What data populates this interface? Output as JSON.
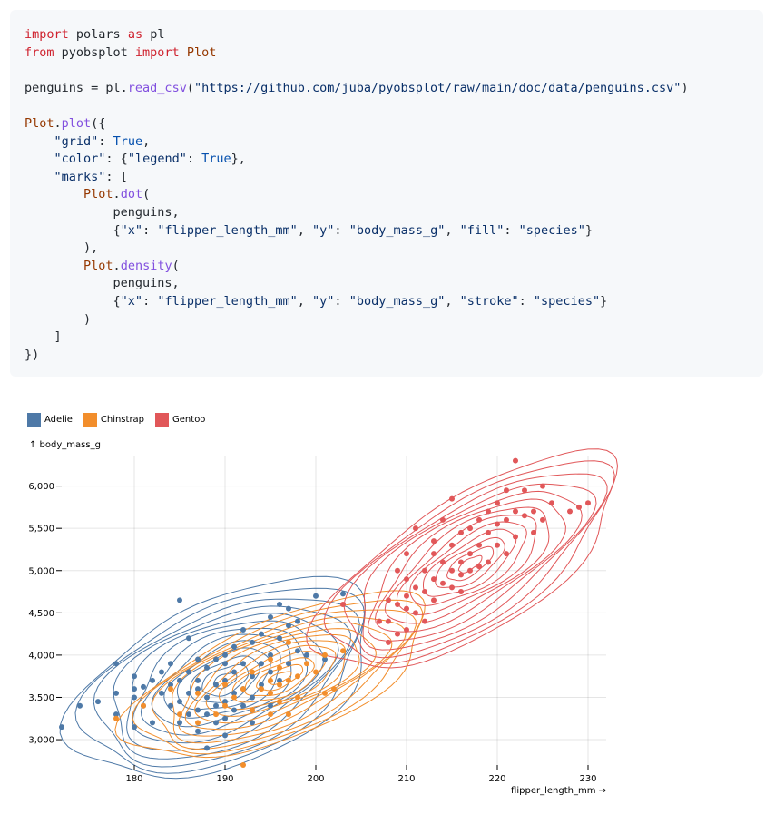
{
  "code": {
    "lines": [
      [
        {
          "t": "import",
          "c": "kw"
        },
        {
          "t": " polars "
        },
        {
          "t": "as",
          "c": "kw"
        },
        {
          "t": " pl"
        }
      ],
      [
        {
          "t": "from",
          "c": "kw"
        },
        {
          "t": " pyobsplot "
        },
        {
          "t": "import",
          "c": "kw"
        },
        {
          "t": " "
        },
        {
          "t": "Plot",
          "c": "cls"
        }
      ],
      [],
      [
        {
          "t": "penguins = pl."
        },
        {
          "t": "read_csv",
          "c": "fn"
        },
        {
          "t": "("
        },
        {
          "t": "\"https://github.com/juba/pyobsplot/raw/main/doc/data/penguins.csv\"",
          "c": "str"
        },
        {
          "t": ")"
        }
      ],
      [],
      [
        {
          "t": "Plot",
          "c": "cls"
        },
        {
          "t": "."
        },
        {
          "t": "plot",
          "c": "fn"
        },
        {
          "t": "({"
        }
      ],
      [
        {
          "t": "    "
        },
        {
          "t": "\"grid\"",
          "c": "str"
        },
        {
          "t": ": "
        },
        {
          "t": "True",
          "c": "cst"
        },
        {
          "t": ","
        }
      ],
      [
        {
          "t": "    "
        },
        {
          "t": "\"color\"",
          "c": "str"
        },
        {
          "t": ": {"
        },
        {
          "t": "\"legend\"",
          "c": "str"
        },
        {
          "t": ": "
        },
        {
          "t": "True",
          "c": "cst"
        },
        {
          "t": "},"
        }
      ],
      [
        {
          "t": "    "
        },
        {
          "t": "\"marks\"",
          "c": "str"
        },
        {
          "t": ": ["
        }
      ],
      [
        {
          "t": "        "
        },
        {
          "t": "Plot",
          "c": "cls"
        },
        {
          "t": "."
        },
        {
          "t": "dot",
          "c": "fn"
        },
        {
          "t": "("
        }
      ],
      [
        {
          "t": "            penguins,"
        }
      ],
      [
        {
          "t": "            {"
        },
        {
          "t": "\"x\"",
          "c": "str"
        },
        {
          "t": ": "
        },
        {
          "t": "\"flipper_length_mm\"",
          "c": "str"
        },
        {
          "t": ", "
        },
        {
          "t": "\"y\"",
          "c": "str"
        },
        {
          "t": ": "
        },
        {
          "t": "\"body_mass_g\"",
          "c": "str"
        },
        {
          "t": ", "
        },
        {
          "t": "\"fill\"",
          "c": "str"
        },
        {
          "t": ": "
        },
        {
          "t": "\"species\"",
          "c": "str"
        },
        {
          "t": "}"
        }
      ],
      [
        {
          "t": "        ),"
        }
      ],
      [
        {
          "t": "        "
        },
        {
          "t": "Plot",
          "c": "cls"
        },
        {
          "t": "."
        },
        {
          "t": "density",
          "c": "fn"
        },
        {
          "t": "("
        }
      ],
      [
        {
          "t": "            penguins,"
        }
      ],
      [
        {
          "t": "            {"
        },
        {
          "t": "\"x\"",
          "c": "str"
        },
        {
          "t": ": "
        },
        {
          "t": "\"flipper_length_mm\"",
          "c": "str"
        },
        {
          "t": ", "
        },
        {
          "t": "\"y\"",
          "c": "str"
        },
        {
          "t": ": "
        },
        {
          "t": "\"body_mass_g\"",
          "c": "str"
        },
        {
          "t": ", "
        },
        {
          "t": "\"stroke\"",
          "c": "str"
        },
        {
          "t": ": "
        },
        {
          "t": "\"species\"",
          "c": "str"
        },
        {
          "t": "}"
        }
      ],
      [
        {
          "t": "        )"
        }
      ],
      [
        {
          "t": "    ]"
        }
      ],
      [
        {
          "t": "})"
        }
      ]
    ]
  },
  "chart_data": {
    "type": "scatter",
    "title": "",
    "xlabel": "flipper_length_mm →",
    "ylabel": "↑ body_mass_g",
    "xlim": [
      172,
      232
    ],
    "ylim": [
      2700,
      6350
    ],
    "xticks": [
      180,
      190,
      200,
      210,
      220,
      230
    ],
    "yticks": [
      3000,
      3500,
      4000,
      4500,
      5000,
      5500,
      6000
    ],
    "xtick_labels": [
      "180",
      "190",
      "200",
      "210",
      "220",
      "230"
    ],
    "ytick_labels": [
      "3,000",
      "3,500",
      "4,000",
      "4,500",
      "5,000",
      "5,500",
      "6,000"
    ],
    "grid": true,
    "legend": "top-left",
    "series": [
      {
        "name": "Adelie",
        "color": "#4e79a7",
        "center": [
          190,
          3700
        ],
        "spread": [
          6.5,
          460
        ],
        "corr": 0.47,
        "points": [
          [
            172,
            3150
          ],
          [
            174,
            3400
          ],
          [
            176,
            3450
          ],
          [
            178,
            3900
          ],
          [
            178,
            3300
          ],
          [
            178,
            3550
          ],
          [
            180,
            3600
          ],
          [
            180,
            3750
          ],
          [
            180,
            3500
          ],
          [
            180,
            3150
          ],
          [
            181,
            3625
          ],
          [
            181,
            3400
          ],
          [
            182,
            3200
          ],
          [
            182,
            3700
          ],
          [
            183,
            3550
          ],
          [
            183,
            3800
          ],
          [
            184,
            3400
          ],
          [
            184,
            3900
          ],
          [
            184,
            3650
          ],
          [
            185,
            3700
          ],
          [
            185,
            3450
          ],
          [
            185,
            3200
          ],
          [
            185,
            4650
          ],
          [
            186,
            3800
          ],
          [
            186,
            3550
          ],
          [
            186,
            3300
          ],
          [
            186,
            4200
          ],
          [
            187,
            3600
          ],
          [
            187,
            3350
          ],
          [
            187,
            3700
          ],
          [
            187,
            3950
          ],
          [
            187,
            3100
          ],
          [
            188,
            3500
          ],
          [
            188,
            3300
          ],
          [
            188,
            3850
          ],
          [
            188,
            2900
          ],
          [
            189,
            3650
          ],
          [
            189,
            3400
          ],
          [
            189,
            3950
          ],
          [
            189,
            3200
          ],
          [
            190,
            3700
          ],
          [
            190,
            3450
          ],
          [
            190,
            4000
          ],
          [
            190,
            3900
          ],
          [
            190,
            3250
          ],
          [
            190,
            3050
          ],
          [
            191,
            3800
          ],
          [
            191,
            3550
          ],
          [
            191,
            4100
          ],
          [
            191,
            3350
          ],
          [
            192,
            3600
          ],
          [
            192,
            3900
          ],
          [
            192,
            3400
          ],
          [
            192,
            4300
          ],
          [
            193,
            3500
          ],
          [
            193,
            3750
          ],
          [
            193,
            4150
          ],
          [
            193,
            3200
          ],
          [
            194,
            3650
          ],
          [
            194,
            3900
          ],
          [
            194,
            4250
          ],
          [
            195,
            3800
          ],
          [
            195,
            3400
          ],
          [
            195,
            4000
          ],
          [
            195,
            4450
          ],
          [
            196,
            4200
          ],
          [
            196,
            3700
          ],
          [
            196,
            4600
          ],
          [
            197,
            4550
          ],
          [
            197,
            3900
          ],
          [
            197,
            4350
          ],
          [
            198,
            4400
          ],
          [
            198,
            4050
          ],
          [
            199,
            4000
          ],
          [
            200,
            4700
          ],
          [
            201,
            3950
          ],
          [
            203,
            4725
          ]
        ]
      },
      {
        "name": "Chinstrap",
        "color": "#f28e2c",
        "center": [
          196,
          3730
        ],
        "spread": [
          6.5,
          380
        ],
        "corr": 0.64,
        "points": [
          [
            178,
            3250
          ],
          [
            181,
            3400
          ],
          [
            184,
            3600
          ],
          [
            185,
            3300
          ],
          [
            187,
            3550
          ],
          [
            187,
            3200
          ],
          [
            189,
            3300
          ],
          [
            190,
            3650
          ],
          [
            190,
            3400
          ],
          [
            191,
            3500
          ],
          [
            192,
            2700
          ],
          [
            192,
            3600
          ],
          [
            193,
            3350
          ],
          [
            193,
            3800
          ],
          [
            194,
            3600
          ],
          [
            195,
            3550
          ],
          [
            195,
            3300
          ],
          [
            195,
            3700
          ],
          [
            195,
            3950
          ],
          [
            196,
            3450
          ],
          [
            196,
            3650
          ],
          [
            196,
            3850
          ],
          [
            197,
            3700
          ],
          [
            197,
            3300
          ],
          [
            197,
            4150
          ],
          [
            198,
            3750
          ],
          [
            198,
            3500
          ],
          [
            199,
            3900
          ],
          [
            200,
            3800
          ],
          [
            201,
            4000
          ],
          [
            201,
            3550
          ],
          [
            202,
            3600
          ],
          [
            203,
            4050
          ]
        ]
      },
      {
        "name": "Gentoo",
        "color": "#e15759",
        "center": [
          217,
          5076
        ],
        "spread": [
          6.5,
          500
        ],
        "corr": 0.7,
        "points": [
          [
            203,
            4600
          ],
          [
            207,
            4400
          ],
          [
            208,
            4150
          ],
          [
            208,
            4650
          ],
          [
            208,
            4400
          ],
          [
            209,
            5000
          ],
          [
            209,
            4250
          ],
          [
            209,
            4600
          ],
          [
            210,
            4700
          ],
          [
            210,
            4550
          ],
          [
            210,
            4900
          ],
          [
            210,
            4300
          ],
          [
            210,
            5200
          ],
          [
            211,
            5500
          ],
          [
            211,
            4800
          ],
          [
            211,
            4500
          ],
          [
            212,
            5000
          ],
          [
            212,
            4750
          ],
          [
            212,
            4400
          ],
          [
            213,
            5200
          ],
          [
            213,
            4900
          ],
          [
            213,
            4650
          ],
          [
            213,
            5350
          ],
          [
            214,
            5100
          ],
          [
            214,
            4850
          ],
          [
            214,
            5600
          ],
          [
            215,
            5300
          ],
          [
            215,
            5000
          ],
          [
            215,
            4800
          ],
          [
            215,
            5850
          ],
          [
            216,
            5100
          ],
          [
            216,
            4950
          ],
          [
            216,
            5450
          ],
          [
            216,
            4750
          ],
          [
            217,
            5500
          ],
          [
            217,
            5200
          ],
          [
            217,
            5000
          ],
          [
            218,
            5300
          ],
          [
            218,
            5600
          ],
          [
            218,
            5050
          ],
          [
            219,
            5700
          ],
          [
            219,
            5450
          ],
          [
            219,
            5100
          ],
          [
            220,
            5800
          ],
          [
            220,
            5550
          ],
          [
            220,
            5300
          ],
          [
            221,
            5600
          ],
          [
            221,
            5950
          ],
          [
            221,
            5200
          ],
          [
            222,
            5700
          ],
          [
            222,
            5400
          ],
          [
            222,
            6300
          ],
          [
            223,
            5650
          ],
          [
            223,
            5950
          ],
          [
            224,
            5700
          ],
          [
            224,
            5450
          ],
          [
            225,
            6000
          ],
          [
            225,
            5600
          ],
          [
            226,
            5800
          ],
          [
            228,
            5700
          ],
          [
            229,
            5750
          ],
          [
            230,
            5800
          ]
        ]
      }
    ]
  }
}
